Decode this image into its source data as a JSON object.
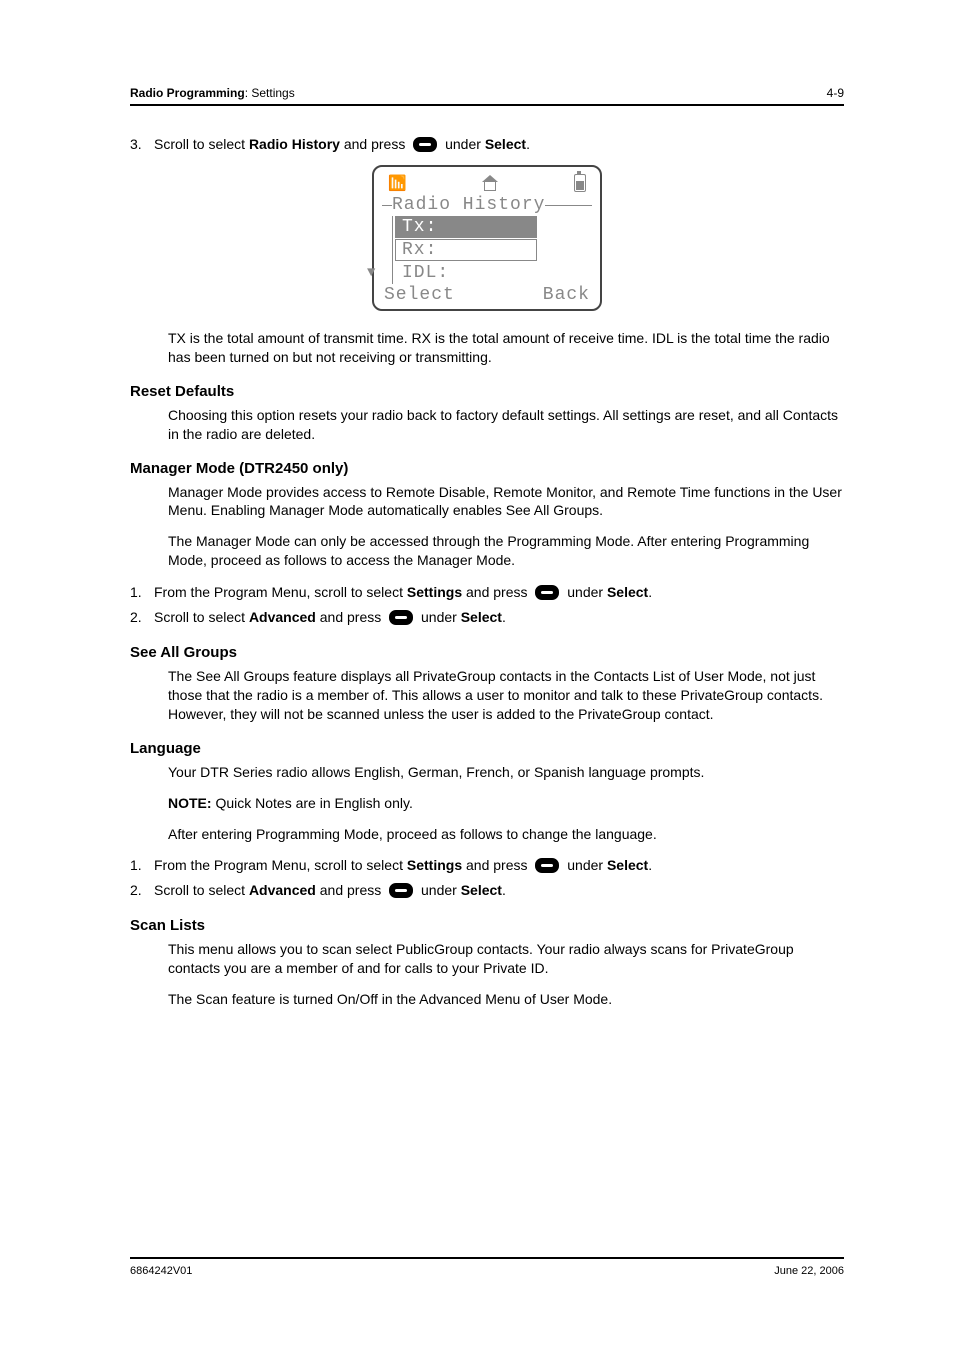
{
  "header": {
    "section_bold": "Radio Programming",
    "section_rest": ": Settings",
    "page_num": "4-9"
  },
  "footer": {
    "doc_num": "6864242V01",
    "date": "June 22, 2006"
  },
  "step3": {
    "num": "3.",
    "pre": "Scroll to select ",
    "bold1": "Radio History",
    "mid": " and press ",
    "post": " under ",
    "bold2": "Select",
    "end": "."
  },
  "lcd": {
    "title": "Radio History",
    "items": [
      "Tx:",
      "Rx:",
      "IDL:"
    ],
    "soft_left": "Select",
    "soft_right": "Back"
  },
  "para_tx": "TX is the total amount of transmit time. RX is the total amount of receive time. IDL is the total time the radio has been turned on but not receiving or transmitting.",
  "reset": {
    "heading": "Reset Defaults",
    "para": "Choosing this option resets your radio back to factory default settings. All settings are reset, and all Contacts in the radio are deleted."
  },
  "manager": {
    "heading": "Manager Mode (DTR2450 only)",
    "para1": "Manager Mode provides access to Remote Disable, Remote Monitor, and Remote Time functions in the User Menu. Enabling Manager Mode automatically enables See All Groups.",
    "para2": "The Manager Mode can only be accessed through the Programming Mode. After entering Programming Mode, proceed as follows to access the Manager Mode.",
    "s1": {
      "num": "1.",
      "pre": "From the Program Menu, scroll to select ",
      "b1": "Settings",
      "mid": " and press ",
      "post": " under ",
      "b2": "Select",
      "end": "."
    },
    "s2": {
      "num": "2.",
      "pre": "Scroll to select ",
      "b1": "Advanced",
      "mid": " and press ",
      "post": " under ",
      "b2": "Select",
      "end": "."
    }
  },
  "seeall": {
    "heading": "See All Groups",
    "para": "The See All Groups feature displays all PrivateGroup contacts in the Contacts List of User Mode, not just those that the radio is a member of. This allows a user to monitor and talk to these PrivateGroup contacts. However, they will not be scanned unless the user is added to the PrivateGroup contact."
  },
  "language": {
    "heading": "Language",
    "para1": "Your DTR Series radio allows English, German, French, or Spanish language prompts.",
    "note_label": "NOTE:",
    "note_text": " Quick Notes are in English only.",
    "para2": "After entering Programming Mode, proceed as follows to change the language.",
    "s1": {
      "num": "1.",
      "pre": "From the Program Menu, scroll to select ",
      "b1": "Settings",
      "mid": " and press ",
      "post": " under ",
      "b2": "Select",
      "end": "."
    },
    "s2": {
      "num": "2.",
      "pre": "Scroll to select ",
      "b1": "Advanced",
      "mid": " and press ",
      "post": " under ",
      "b2": "Select",
      "end": "."
    }
  },
  "scan": {
    "heading": "Scan Lists",
    "para1": "This menu allows you to scan select PublicGroup contacts. Your radio always scans for PrivateGroup contacts you are a member of and for calls to your Private ID.",
    "para2": "The Scan feature is turned On/Off in the Advanced Menu of User Mode."
  }
}
